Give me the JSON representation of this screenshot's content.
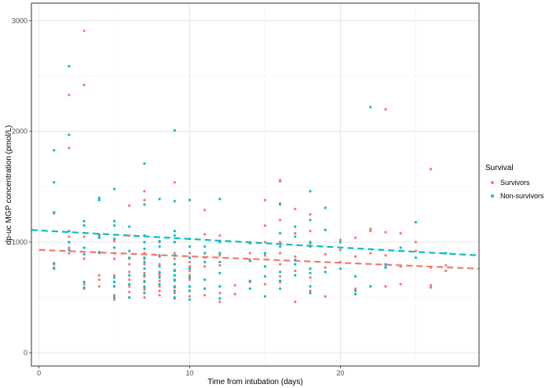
{
  "chart_data": {
    "type": "scatter",
    "xlabel": "Time from intubation (days)",
    "ylabel": "dp-uc MGP concentration (pmol/L)",
    "xlim": [
      -0.5,
      29.2
    ],
    "ylim": [
      -120,
      3160
    ],
    "x_ticks": [
      0,
      10,
      20
    ],
    "y_ticks": [
      0,
      1000,
      2000,
      3000
    ],
    "grid": true,
    "legend": {
      "title": "Survival",
      "position": "right"
    },
    "series": [
      {
        "name": "Survivors",
        "color": "#F8766D",
        "trend": {
          "x": [
            0,
            29.2
          ],
          "y": [
            930,
            760
          ]
        },
        "points": [
          [
            1,
            1260
          ],
          [
            1,
            800
          ],
          [
            1,
            770
          ],
          [
            2,
            2330
          ],
          [
            2,
            1850
          ],
          [
            2,
            1050
          ],
          [
            2,
            1000
          ],
          [
            2,
            950
          ],
          [
            2,
            900
          ],
          [
            3,
            2910
          ],
          [
            3,
            2420
          ],
          [
            3,
            1150
          ],
          [
            3,
            1050
          ],
          [
            3,
            950
          ],
          [
            3,
            850
          ],
          [
            3,
            620
          ],
          [
            3,
            580
          ],
          [
            4,
            1070
          ],
          [
            4,
            900
          ],
          [
            4,
            700
          ],
          [
            4,
            660
          ],
          [
            4,
            600
          ],
          [
            5,
            1010
          ],
          [
            5,
            900
          ],
          [
            5,
            850
          ],
          [
            5,
            700
          ],
          [
            5,
            640
          ],
          [
            5,
            600
          ],
          [
            5,
            520
          ],
          [
            5,
            480
          ],
          [
            6,
            1330
          ],
          [
            6,
            1060
          ],
          [
            6,
            850
          ],
          [
            6,
            800
          ],
          [
            6,
            730
          ],
          [
            6,
            660
          ],
          [
            6,
            600
          ],
          [
            6,
            550
          ],
          [
            6,
            500
          ],
          [
            7,
            1460
          ],
          [
            7,
            1380
          ],
          [
            7,
            1060
          ],
          [
            7,
            900
          ],
          [
            7,
            850
          ],
          [
            7,
            800
          ],
          [
            7,
            720
          ],
          [
            7,
            690
          ],
          [
            7,
            650
          ],
          [
            7,
            600
          ],
          [
            7,
            570
          ],
          [
            7,
            540
          ],
          [
            7,
            500
          ],
          [
            8,
            1000
          ],
          [
            8,
            870
          ],
          [
            8,
            800
          ],
          [
            8,
            730
          ],
          [
            8,
            700
          ],
          [
            8,
            650
          ],
          [
            8,
            600
          ],
          [
            8,
            560
          ],
          [
            8,
            520
          ],
          [
            9,
            1540
          ],
          [
            9,
            1000
          ],
          [
            9,
            900
          ],
          [
            9,
            850
          ],
          [
            9,
            800
          ],
          [
            9,
            750
          ],
          [
            9,
            700
          ],
          [
            9,
            650
          ],
          [
            9,
            590
          ],
          [
            9,
            540
          ],
          [
            9,
            490
          ],
          [
            10,
            900
          ],
          [
            10,
            860
          ],
          [
            10,
            820
          ],
          [
            10,
            780
          ],
          [
            10,
            740
          ],
          [
            10,
            700
          ],
          [
            10,
            660
          ],
          [
            10,
            600
          ],
          [
            10,
            560
          ],
          [
            10,
            510
          ],
          [
            11,
            1290
          ],
          [
            11,
            1070
          ],
          [
            11,
            860
          ],
          [
            11,
            780
          ],
          [
            11,
            580
          ],
          [
            11,
            520
          ],
          [
            12,
            1060
          ],
          [
            12,
            880
          ],
          [
            12,
            790
          ],
          [
            12,
            600
          ],
          [
            12,
            540
          ],
          [
            12,
            460
          ],
          [
            13,
            610
          ],
          [
            13,
            530
          ],
          [
            14,
            1000
          ],
          [
            14,
            900
          ],
          [
            14,
            840
          ],
          [
            14,
            640
          ],
          [
            15,
            1380
          ],
          [
            15,
            1150
          ],
          [
            15,
            1000
          ],
          [
            15,
            880
          ],
          [
            15,
            780
          ],
          [
            15,
            620
          ],
          [
            16,
            1560
          ],
          [
            16,
            1550
          ],
          [
            16,
            1350
          ],
          [
            16,
            1200
          ],
          [
            16,
            1000
          ],
          [
            16,
            900
          ],
          [
            16,
            800
          ],
          [
            16,
            690
          ],
          [
            16,
            640
          ],
          [
            17,
            1300
          ],
          [
            17,
            1080
          ],
          [
            17,
            870
          ],
          [
            17,
            740
          ],
          [
            17,
            460
          ],
          [
            18,
            1250
          ],
          [
            18,
            1100
          ],
          [
            18,
            990
          ],
          [
            18,
            680
          ],
          [
            18,
            560
          ],
          [
            19,
            890
          ],
          [
            19,
            770
          ],
          [
            19,
            510
          ],
          [
            20,
            1020
          ],
          [
            20,
            930
          ],
          [
            20,
            820
          ],
          [
            21,
            1040
          ],
          [
            21,
            870
          ],
          [
            21,
            580
          ],
          [
            22,
            1120
          ],
          [
            22,
            1100
          ],
          [
            22,
            900
          ],
          [
            23,
            2200
          ],
          [
            23,
            1090
          ],
          [
            23,
            880
          ],
          [
            23,
            780
          ],
          [
            23,
            600
          ],
          [
            24,
            1080
          ],
          [
            24,
            780
          ],
          [
            24,
            620
          ],
          [
            25,
            1000
          ],
          [
            25,
            920
          ],
          [
            26,
            1660
          ],
          [
            26,
            770
          ],
          [
            26,
            610
          ],
          [
            26,
            590
          ],
          [
            27,
            790
          ],
          [
            27,
            740
          ]
        ]
      },
      {
        "name": "Non-survivors",
        "color": "#00BFC4",
        "trend": {
          "x": [
            -0.5,
            29.2
          ],
          "y": [
            1110,
            880
          ]
        },
        "points": [
          [
            1,
            1830
          ],
          [
            1,
            1540
          ],
          [
            1,
            1270
          ],
          [
            1,
            810
          ],
          [
            1,
            760
          ],
          [
            2,
            2590
          ],
          [
            2,
            1970
          ],
          [
            2,
            1100
          ],
          [
            2,
            1000
          ],
          [
            2,
            930
          ],
          [
            3,
            1190
          ],
          [
            3,
            1150
          ],
          [
            3,
            950
          ],
          [
            3,
            890
          ],
          [
            3,
            640
          ],
          [
            3,
            590
          ],
          [
            4,
            1400
          ],
          [
            4,
            1380
          ],
          [
            4,
            1060
          ],
          [
            4,
            1040
          ],
          [
            4,
            910
          ],
          [
            5,
            1480
          ],
          [
            5,
            1190
          ],
          [
            5,
            1150
          ],
          [
            5,
            1030
          ],
          [
            5,
            950
          ],
          [
            5,
            680
          ],
          [
            5,
            640
          ],
          [
            5,
            600
          ],
          [
            5,
            500
          ],
          [
            6,
            1140
          ],
          [
            6,
            920
          ],
          [
            6,
            860
          ],
          [
            6,
            700
          ],
          [
            6,
            620
          ],
          [
            6,
            500
          ],
          [
            7,
            1710
          ],
          [
            7,
            1340
          ],
          [
            7,
            1060
          ],
          [
            7,
            1000
          ],
          [
            7,
            940
          ],
          [
            7,
            860
          ],
          [
            7,
            820
          ],
          [
            7,
            760
          ],
          [
            7,
            700
          ],
          [
            7,
            640
          ],
          [
            7,
            590
          ],
          [
            7,
            540
          ],
          [
            8,
            1390
          ],
          [
            8,
            1010
          ],
          [
            8,
            960
          ],
          [
            8,
            880
          ],
          [
            8,
            780
          ],
          [
            8,
            720
          ],
          [
            8,
            680
          ],
          [
            8,
            620
          ],
          [
            9,
            2010
          ],
          [
            9,
            1370
          ],
          [
            9,
            1100
          ],
          [
            9,
            1060
          ],
          [
            9,
            1000
          ],
          [
            9,
            880
          ],
          [
            9,
            800
          ],
          [
            9,
            740
          ],
          [
            9,
            700
          ],
          [
            9,
            660
          ],
          [
            9,
            600
          ],
          [
            9,
            560
          ],
          [
            9,
            500
          ],
          [
            10,
            1380
          ],
          [
            10,
            1030
          ],
          [
            10,
            960
          ],
          [
            10,
            860
          ],
          [
            10,
            760
          ],
          [
            10,
            680
          ],
          [
            10,
            600
          ],
          [
            10,
            560
          ],
          [
            10,
            480
          ],
          [
            11,
            960
          ],
          [
            11,
            900
          ],
          [
            11,
            820
          ],
          [
            11,
            660
          ],
          [
            11,
            580
          ],
          [
            12,
            1390
          ],
          [
            12,
            1000
          ],
          [
            12,
            900
          ],
          [
            12,
            820
          ],
          [
            12,
            720
          ],
          [
            12,
            600
          ],
          [
            12,
            490
          ],
          [
            14,
            990
          ],
          [
            14,
            830
          ],
          [
            14,
            650
          ],
          [
            14,
            580
          ],
          [
            15,
            900
          ],
          [
            15,
            780
          ],
          [
            15,
            690
          ],
          [
            15,
            510
          ],
          [
            16,
            1340
          ],
          [
            16,
            1080
          ],
          [
            16,
            960
          ],
          [
            16,
            730
          ],
          [
            16,
            650
          ],
          [
            16,
            580
          ],
          [
            17,
            1140
          ],
          [
            17,
            1050
          ],
          [
            17,
            840
          ],
          [
            17,
            800
          ],
          [
            17,
            700
          ],
          [
            18,
            1460
          ],
          [
            18,
            1200
          ],
          [
            18,
            1000
          ],
          [
            18,
            960
          ],
          [
            18,
            760
          ],
          [
            18,
            720
          ],
          [
            18,
            600
          ],
          [
            18,
            540
          ],
          [
            19,
            1310
          ],
          [
            19,
            1110
          ],
          [
            19,
            730
          ],
          [
            20,
            1000
          ],
          [
            20,
            760
          ],
          [
            21,
            690
          ],
          [
            21,
            560
          ],
          [
            21,
            530
          ],
          [
            22,
            2220
          ],
          [
            22,
            600
          ],
          [
            23,
            800
          ],
          [
            23,
            770
          ],
          [
            24,
            950
          ],
          [
            25,
            1180
          ],
          [
            25,
            860
          ],
          [
            27,
            900
          ]
        ]
      }
    ]
  }
}
